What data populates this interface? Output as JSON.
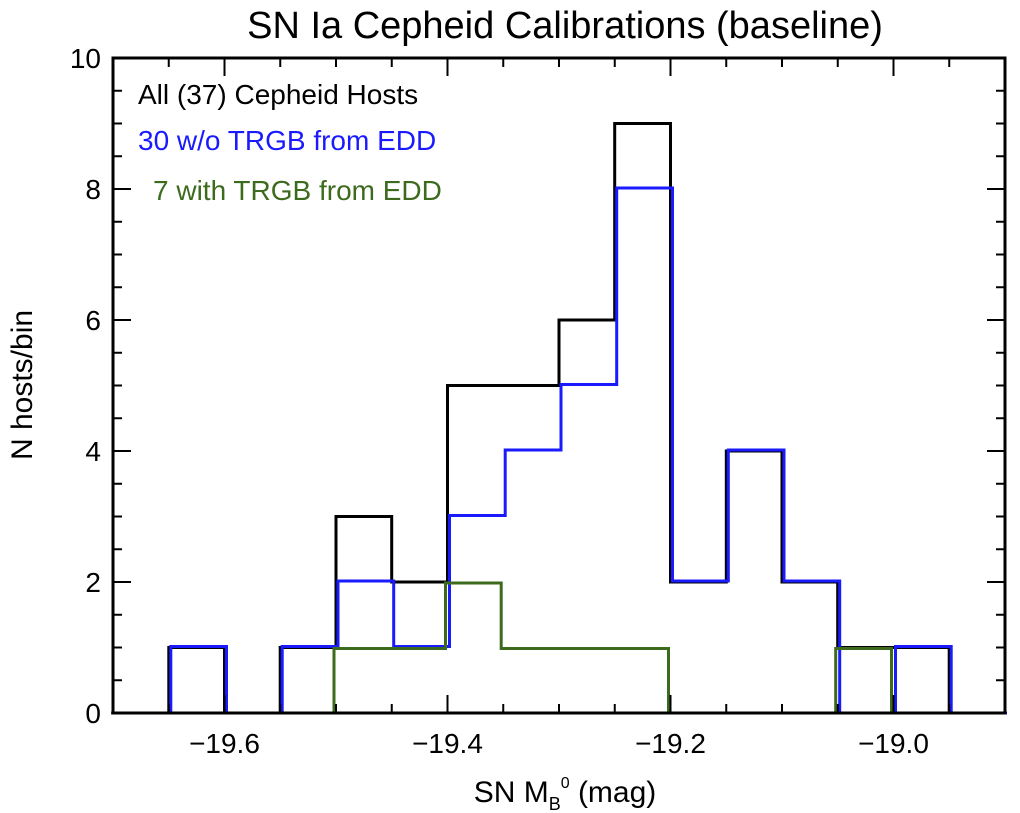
{
  "chart_data": {
    "type": "histogram",
    "title": "SN Ia Cepheid Calibrations (baseline)",
    "xlabel": {
      "main": "SN M",
      "sub": "B",
      "sup": "0",
      "unit": " (mag)"
    },
    "ylabel": "N hosts/bin",
    "xlim": [
      -19.7,
      -18.9
    ],
    "ylim": [
      0,
      10
    ],
    "x_ticks": [
      -19.6,
      -19.4,
      -19.2,
      -19.0
    ],
    "x_tick_labels": [
      "−19.6",
      "−19.4",
      "−19.2",
      "−19.0"
    ],
    "y_ticks": [
      0,
      2,
      4,
      6,
      8,
      10
    ],
    "y_tick_labels": [
      "0",
      "2",
      "4",
      "6",
      "8",
      "10"
    ],
    "bin_edges": [
      -19.7,
      -19.65,
      -19.6,
      -19.55,
      -19.5,
      -19.45,
      -19.4,
      -19.35,
      -19.3,
      -19.25,
      -19.2,
      -19.15,
      -19.1,
      -19.05,
      -19.0,
      -18.95,
      -18.9
    ],
    "series": [
      {
        "name": "All (37) Cepheid Hosts",
        "color": "#000000",
        "counts": [
          0,
          1,
          0,
          1,
          3,
          2,
          5,
          5,
          6,
          9,
          2,
          4,
          2,
          1,
          1,
          0
        ]
      },
      {
        "name": "30 w/o TRGB from EDD",
        "color": "#1a1aff",
        "counts": [
          0,
          1,
          0,
          1,
          2,
          1,
          3,
          4,
          5,
          8,
          2,
          4,
          2,
          0,
          1,
          0
        ]
      },
      {
        "name": "7 with TRGB from EDD",
        "color": "#3d6b1e",
        "counts": [
          0,
          0,
          0,
          0,
          1,
          1,
          2,
          1,
          1,
          1,
          0,
          0,
          0,
          1,
          0,
          0
        ]
      }
    ],
    "legend_position": "top-left",
    "grid": false
  }
}
